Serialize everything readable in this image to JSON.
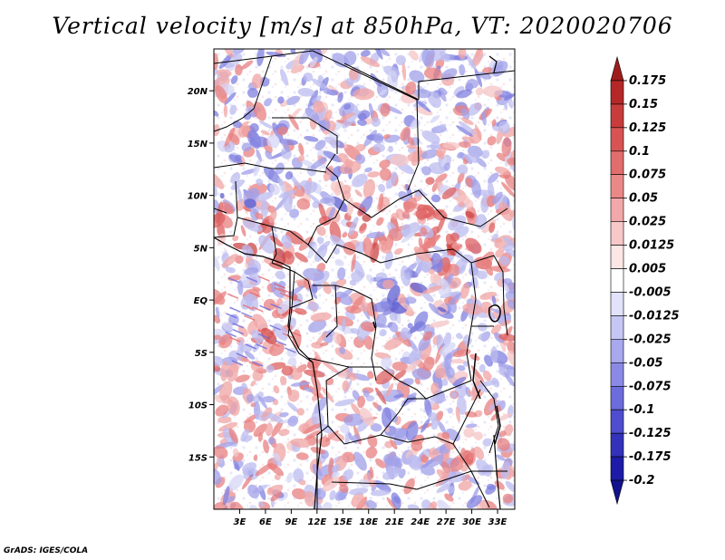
{
  "title": "Vertical velocity [m/s] at 850hPa, VT: 2020020706",
  "credit": "GrADS: IGES/COLA",
  "map": {
    "lon_range": [
      0,
      35
    ],
    "lat_range": [
      -20,
      24
    ],
    "x_ticks": [
      "3E",
      "6E",
      "9E",
      "12E",
      "15E",
      "18E",
      "21E",
      "24E",
      "27E",
      "30E",
      "33E"
    ],
    "x_tick_values": [
      3,
      6,
      9,
      12,
      15,
      18,
      21,
      24,
      27,
      30,
      33
    ],
    "y_ticks": [
      "20N",
      "15N",
      "10N",
      "5N",
      "EQ",
      "5S",
      "10S",
      "15S"
    ],
    "y_tick_values": [
      20,
      15,
      10,
      5,
      0,
      -5,
      -10,
      -15
    ]
  },
  "colorbar": {
    "labels": [
      "0.175",
      "0.15",
      "0.125",
      "0.1",
      "0.075",
      "0.05",
      "0.025",
      "0.0125",
      "0.005",
      "-0.005",
      "-0.0125",
      "-0.025",
      "-0.05",
      "-0.075",
      "-0.1",
      "-0.125",
      "-0.175",
      "-0.2"
    ],
    "colors": [
      "#a01c1c",
      "#b42828",
      "#c83c3c",
      "#d85454",
      "#e26d6d",
      "#ea8888",
      "#f2a8a8",
      "#f8c8c8",
      "#fde6e6",
      "#ffffff",
      "#e2e2fa",
      "#c6c6f4",
      "#a8a8ee",
      "#8a8ae6",
      "#6c6cdc",
      "#4e4ece",
      "#3232ba",
      "#1c1ca8",
      "#12128e"
    ]
  },
  "field": {
    "positive_color": "#e66a6a",
    "negative_color": "#6a6adc"
  }
}
